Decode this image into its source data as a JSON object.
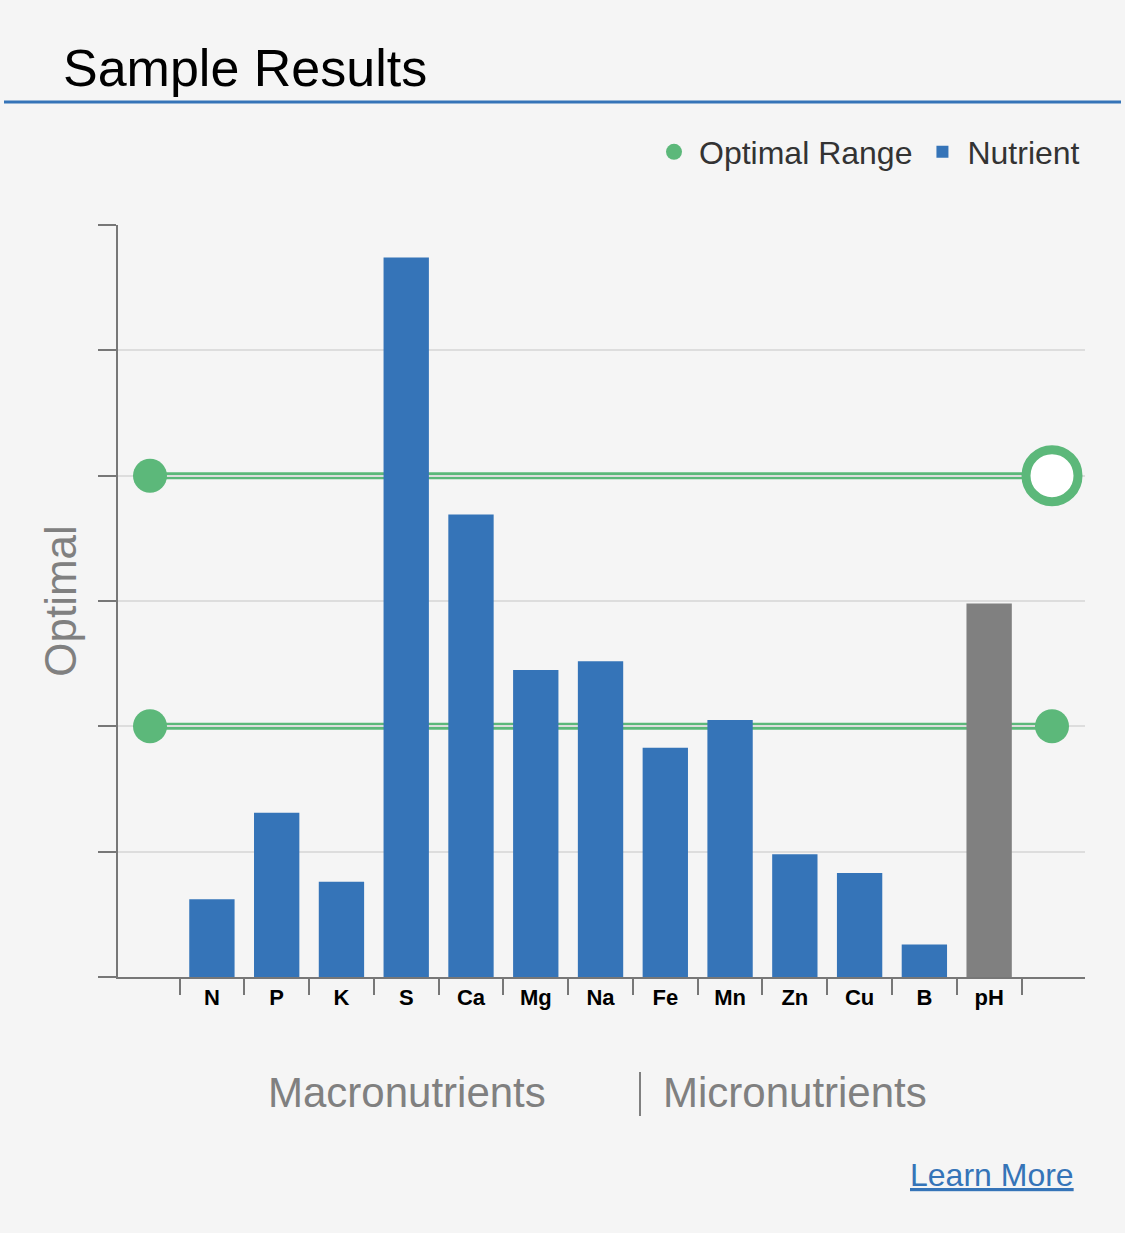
{
  "chart_data": {
    "type": "bar",
    "title": "Sample Results",
    "categories": [
      "N",
      "P",
      "K",
      "S",
      "Ca",
      "Mg",
      "Na",
      "Fe",
      "Mn",
      "Zn",
      "Cu",
      "B",
      "pH"
    ],
    "series": [
      {
        "name": "Nutrient",
        "values": [
          0.62,
          1.31,
          0.76,
          5.74,
          3.69,
          2.45,
          2.52,
          1.83,
          2.05,
          0.98,
          0.83,
          0.26,
          2.98
        ],
        "colors": [
          "#3574b8",
          "#3574b8",
          "#3574b8",
          "#3574b8",
          "#3574b8",
          "#3574b8",
          "#3574b8",
          "#3574b8",
          "#3574b8",
          "#3574b8",
          "#3574b8",
          "#3574b8",
          "#808080"
        ]
      }
    ],
    "optimal_range": {
      "name": "Optimal Range",
      "values": [
        2,
        4
      ],
      "color": "#5cb87a"
    },
    "y_label": "Optimal",
    "groups": [
      "Macronutrients",
      "Micronutrients"
    ],
    "link": "Learn More",
    "ylim": [
      0,
      6
    ],
    "yticks": [
      0,
      1,
      2,
      3,
      4,
      5,
      6
    ],
    "grid": true,
    "tick_labels": "x",
    "legend": "top right"
  }
}
